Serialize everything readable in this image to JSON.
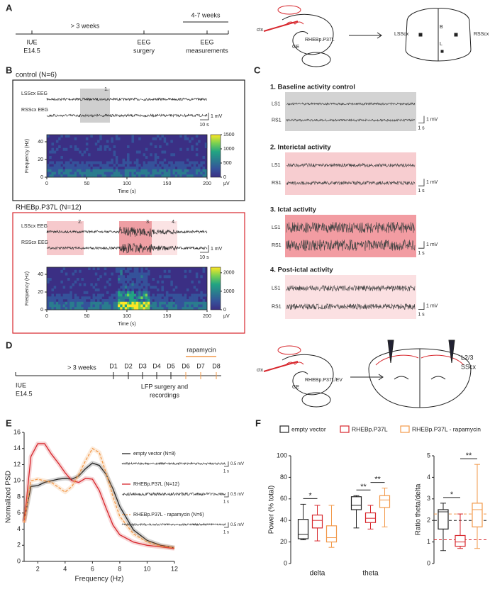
{
  "panel_labels": [
    "A",
    "B",
    "C",
    "D",
    "E",
    "F"
  ],
  "a": {
    "timeline": {
      "span": "> 3 weeks",
      "bracket": "4-7 weeks",
      "events": [
        [
          "IUE",
          "E14.5"
        ],
        [
          "EEG",
          "surgery"
        ],
        [
          "EEG",
          "measurements"
        ]
      ]
    },
    "diagram": {
      "ctx": "ctx",
      "construct": "RHEBp.P37L",
      "ge": "GE"
    },
    "top_view": {
      "left": "LSScx",
      "right": "RSScx",
      "bregma": "B",
      "lambda": "L"
    }
  },
  "b": {
    "control": {
      "title": "control (N=6)",
      "traces": [
        "LSScx EEG",
        "RSScx EEG"
      ],
      "epochs": [
        "1."
      ],
      "scale": [
        "1 mV",
        "10 s"
      ],
      "spectrogram": {
        "ylabel": "Frequency (Hz)",
        "xlabel": "Time (s)",
        "xlim": [
          0,
          200
        ],
        "xticks": [
          0,
          50,
          100,
          150,
          200
        ],
        "ylim": [
          0,
          48
        ],
        "yticks": [
          0,
          20,
          40
        ],
        "clim": [
          0,
          1500
        ],
        "cticks": [
          0,
          500,
          1000,
          1500
        ],
        "cunit": "µV"
      }
    },
    "rheb": {
      "title": "RHEBp.P37L (N=12)",
      "traces": [
        "LSScx EEG",
        "RSScx EEG"
      ],
      "epochs": [
        "2.",
        "3.",
        "4."
      ],
      "scale": [
        "1 mV",
        "10 s"
      ],
      "spectrogram": {
        "ylabel": "Frequency (Hz)",
        "xlabel": "Time (s)",
        "xlim": [
          0,
          200
        ],
        "xticks": [
          0,
          50,
          100,
          150,
          200
        ],
        "ylim": [
          0,
          48
        ],
        "yticks": [
          0,
          20,
          40
        ],
        "clim": [
          0,
          2300
        ],
        "cticks": [
          0,
          1000,
          2000
        ],
        "cunit": "µV"
      }
    }
  },
  "c": {
    "blocks": [
      {
        "title": "1. Baseline activity control",
        "channels": [
          "LS1",
          "RS1"
        ],
        "scale": [
          "1 mV",
          "1 s"
        ]
      },
      {
        "title": "2. Interictal activity",
        "channels": [
          "LS1",
          "RS1"
        ],
        "scale": [
          "1 mV",
          "1 s"
        ]
      },
      {
        "title": "3. Ictal activity",
        "channels": [
          "LS1",
          "RS1"
        ],
        "scale": [
          "1 mV",
          "1 s"
        ]
      },
      {
        "title": "4. Post-ictal activity",
        "channels": [
          "LS1",
          "RS1"
        ],
        "scale": [
          "1 mV",
          "1 s"
        ]
      }
    ]
  },
  "d": {
    "timeline": {
      "span": "> 3 weeks",
      "start": [
        "IUE",
        "E14.5"
      ],
      "days": [
        "D1",
        "D2",
        "D3",
        "D4",
        "D5",
        "D6",
        "D7",
        "D8"
      ],
      "treatment": "rapamycin",
      "procedure": [
        "LFP surgery and",
        "recordings"
      ]
    },
    "diagram": {
      "ctx": "ctx",
      "construct": "RHEBp.P37L/EV",
      "ge": "GE"
    },
    "coronal": [
      "L2/3",
      "SScx"
    ]
  },
  "chart_data": [
    {
      "type": "line",
      "xlabel": "Frequency (Hz)",
      "ylabel": "Normalized PSD",
      "x": [
        1,
        1.5,
        2,
        2.5,
        3,
        3.5,
        4,
        4.5,
        5,
        5.5,
        6,
        6.5,
        7,
        7.5,
        8,
        9,
        10,
        11,
        12
      ],
      "xlim": [
        1,
        12
      ],
      "xticks": [
        2,
        4,
        6,
        8,
        10,
        12
      ],
      "ylim": [
        0,
        16
      ],
      "yticks": [
        0,
        2,
        4,
        6,
        8,
        10,
        12,
        14,
        16
      ],
      "series": [
        {
          "name": "empty vector (N=8)",
          "color": "#222222",
          "dash": false,
          "scale_labels": [
            "0.5 mV",
            "1 s"
          ],
          "values": [
            5.0,
            9.3,
            9.4,
            9.8,
            10.0,
            10.2,
            10.3,
            10.2,
            10.6,
            11.5,
            12.2,
            11.9,
            10.8,
            9.0,
            6.8,
            3.9,
            2.6,
            2.0,
            1.7
          ]
        },
        {
          "name": "RHEBp.P37L (N=12)",
          "color": "#d7262c",
          "dash": false,
          "scale_labels": [
            "0.5 mV",
            "1 s"
          ],
          "values": [
            4.8,
            13.0,
            14.6,
            14.6,
            13.3,
            12.2,
            11.0,
            10.0,
            9.8,
            10.3,
            10.2,
            8.8,
            6.6,
            4.5,
            3.3,
            2.4,
            2.0,
            1.8,
            1.6
          ]
        },
        {
          "name": "RHEBp.P37L - rapamycin (N=6)",
          "color": "#f2994a",
          "dash": true,
          "scale_labels": [
            "0.5 mV",
            "1 s"
          ],
          "values": [
            4.8,
            10.0,
            10.2,
            10.0,
            9.8,
            9.2,
            8.6,
            9.3,
            10.8,
            12.5,
            14.0,
            13.5,
            11.0,
            8.0,
            5.6,
            3.4,
            2.4,
            1.9,
            1.7
          ]
        }
      ]
    },
    {
      "type": "box",
      "ylabel": "Power (% total)",
      "categories": [
        "delta",
        "theta"
      ],
      "ylim": [
        0,
        100
      ],
      "yticks": [
        0,
        20,
        40,
        60,
        80,
        100
      ],
      "series": [
        {
          "name": "empty vector",
          "color": "#222222",
          "values": [
            [
              22,
              23,
              27,
              41,
              55
            ],
            [
              33,
              50,
              54,
              62,
              63
            ]
          ]
        },
        {
          "name": "RHEBp.P37L",
          "color": "#d7262c",
          "values": [
            [
              21,
              33,
              40,
              45,
              54
            ],
            [
              32,
              38,
              42,
              47,
              54
            ]
          ]
        },
        {
          "name": "RHEBp.P37L - rapamycin",
          "color": "#f2994a",
          "values": [
            [
              15,
              20,
              24,
              35,
              54
            ],
            [
              34,
              52,
              59,
              63,
              70
            ]
          ]
        }
      ],
      "significance": [
        "*",
        "**",
        "**"
      ]
    },
    {
      "type": "box",
      "ylabel": "Ratio theta/delta",
      "ylim": [
        0,
        5
      ],
      "yticks": [
        0,
        1,
        2,
        3,
        4,
        5
      ],
      "series": [
        {
          "color": "#222222",
          "values": [
            [
              0.6,
              1.6,
              2.4,
              2.5,
              2.8
            ]
          ]
        },
        {
          "color": "#d7262c",
          "values": [
            [
              0.7,
              0.8,
              1.0,
              1.3,
              2.3
            ]
          ]
        },
        {
          "color": "#f2994a",
          "values": [
            [
              0.7,
              1.7,
              2.5,
              2.8,
              4.6
            ]
          ]
        }
      ],
      "reference_lines": [
        2.0,
        1.1,
        2.3
      ],
      "significance": [
        "*",
        "**"
      ]
    }
  ]
}
